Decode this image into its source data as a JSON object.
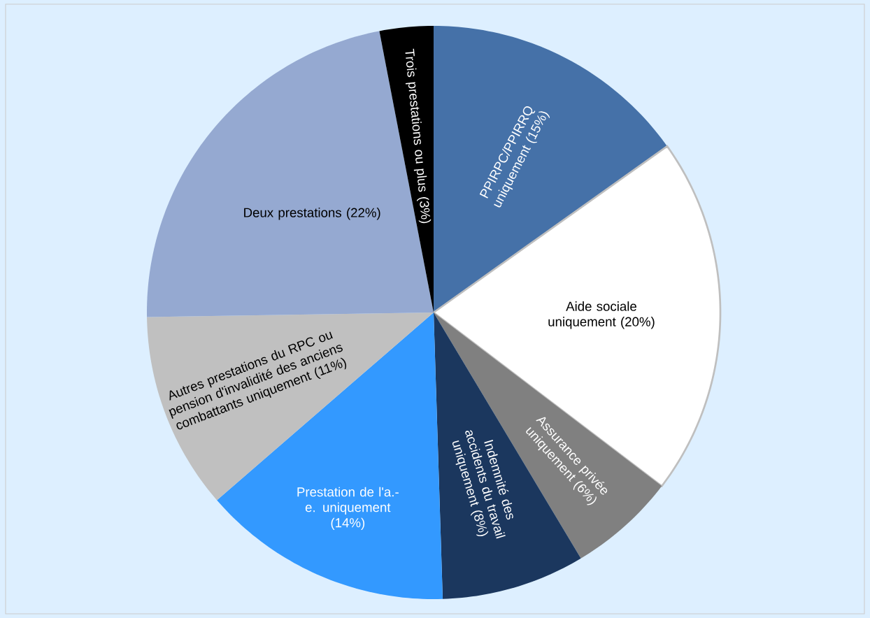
{
  "chart_data": {
    "type": "pie",
    "categories": [
      "PPIRPC/PPIRRQ uniquement",
      "Aide sociale uniquement",
      "Assurance privée uniquement",
      "Indemnité des accidents du travail uniquement",
      "Prestation de l'a.-e. uniquement",
      "Autres prestations du RPC ou pension d'invalidité des anciens combattants uniquement",
      "Deux prestations",
      "Trois prestations ou plus"
    ],
    "values": [
      15,
      20,
      6,
      8,
      14,
      11,
      22,
      3
    ],
    "colors": [
      "#4571a8",
      "#ffffff",
      "#808080",
      "#1b375e",
      "#3399ff",
      "#c0c0c0",
      "#95a9d1",
      "#000000"
    ],
    "value_labels": [
      "(15%)",
      "(20%)",
      "(6%)",
      "(8%)",
      "(14%)",
      "(11%)",
      "(22%)",
      "(3%)"
    ]
  }
}
